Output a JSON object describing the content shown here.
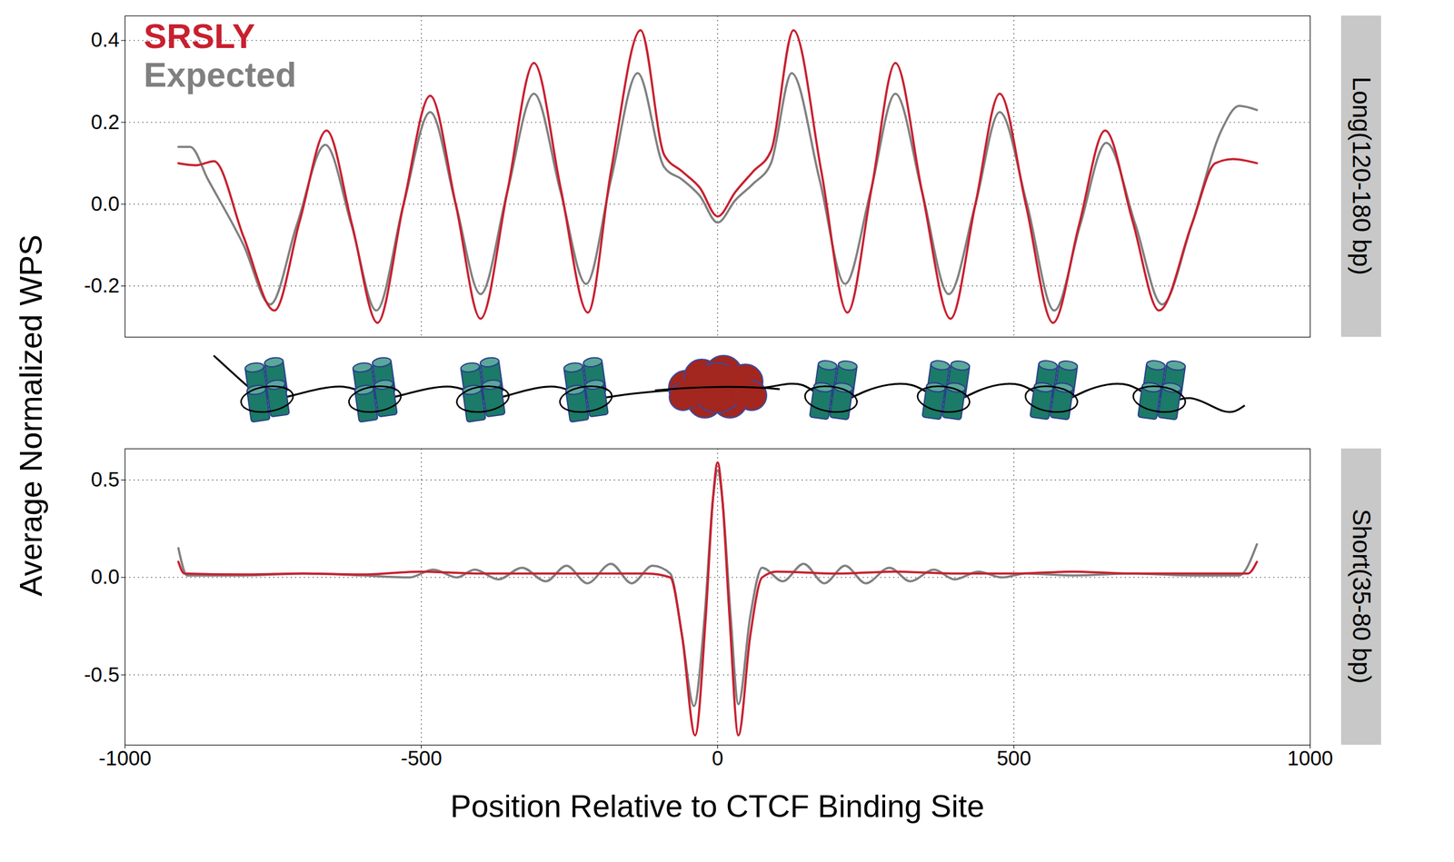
{
  "chart_data": [
    {
      "type": "line",
      "title": "Long(120-180 bp)",
      "y_label": "Average Normalized WPS",
      "xlim": [
        -1000,
        1000
      ],
      "xticks": [
        -1000,
        -500,
        0,
        500,
        1000
      ],
      "ylim": [
        -0.325,
        0.46
      ],
      "yticks": [
        -0.2,
        {
          "value": 0,
          "label": "0.0"
        },
        0.2,
        0.4
      ],
      "grid": true,
      "tick_labels": "y",
      "legend": "top-left",
      "series": [
        {
          "name": "SRSLY",
          "color": "#c8202f",
          "x": [
            -910,
            -880,
            -850,
            -800,
            -748,
            -705,
            -660,
            -617,
            -574,
            -530,
            -485,
            -442,
            -400,
            -355,
            -310,
            -265,
            -219,
            -180,
            -130,
            -90,
            -60,
            -30,
            0,
            30,
            60,
            90,
            128,
            175,
            219,
            260,
            300,
            345,
            393,
            435,
            476,
            520,
            566,
            610,
            654,
            700,
            745,
            800,
            840,
            870,
            910
          ],
          "values": [
            0.1,
            0.095,
            0.105,
            -0.08,
            -0.26,
            -0.04,
            0.18,
            -0.05,
            -0.29,
            0.0,
            0.265,
            0.0,
            -0.28,
            0.03,
            0.345,
            0.04,
            -0.265,
            0.08,
            0.425,
            0.12,
            0.08,
            0.04,
            -0.03,
            0.03,
            0.08,
            0.13,
            0.425,
            0.08,
            -0.265,
            0.04,
            0.345,
            0.03,
            -0.28,
            0.0,
            0.27,
            0.0,
            -0.29,
            -0.05,
            0.18,
            -0.04,
            -0.26,
            -0.05,
            0.1,
            0.11,
            0.1
          ]
        },
        {
          "name": "Expected",
          "color": "#808080",
          "x": [
            -910,
            -890,
            -860,
            -800,
            -755,
            -710,
            -662,
            -618,
            -576,
            -530,
            -485,
            -442,
            -400,
            -355,
            -310,
            -265,
            -222,
            -180,
            -135,
            -90,
            -60,
            -30,
            0,
            30,
            60,
            90,
            125,
            172,
            215,
            258,
            300,
            345,
            390,
            435,
            476,
            522,
            568,
            612,
            656,
            705,
            750,
            800,
            850,
            880,
            910
          ],
          "values": [
            0.14,
            0.14,
            0.06,
            -0.1,
            -0.245,
            -0.05,
            0.145,
            -0.05,
            -0.26,
            0.0,
            0.225,
            0.0,
            -0.22,
            0.03,
            0.27,
            0.03,
            -0.195,
            0.06,
            0.32,
            0.09,
            0.06,
            0.02,
            -0.045,
            0.01,
            0.05,
            0.1,
            0.32,
            0.06,
            -0.195,
            0.03,
            0.27,
            0.03,
            -0.22,
            0.0,
            0.225,
            0.0,
            -0.26,
            -0.05,
            0.15,
            -0.05,
            -0.245,
            -0.05,
            0.18,
            0.24,
            0.23
          ]
        }
      ]
    },
    {
      "type": "line",
      "title": "Short(35-80 bp)",
      "x_label": "Position Relative to CTCF Binding Site",
      "xlim": [
        -1000,
        1000
      ],
      "xticks": [
        -1000,
        -500,
        0,
        500,
        1000
      ],
      "ylim": [
        -0.86,
        0.66
      ],
      "yticks": [
        -0.5,
        {
          "value": 0,
          "label": "0.0"
        },
        0.5
      ],
      "grid": true,
      "series": [
        {
          "color": "#c8202f",
          "x": [
            -910,
            -900,
            -800,
            -700,
            -600,
            -500,
            -400,
            -300,
            -200,
            -120,
            -80,
            -60,
            -38,
            -20,
            -8,
            0,
            8,
            20,
            35,
            55,
            75,
            100,
            200,
            300,
            400,
            500,
            600,
            700,
            800,
            895,
            910
          ],
          "values": [
            0.08,
            0.02,
            0.015,
            0.02,
            0.015,
            0.03,
            0.02,
            0.02,
            0.02,
            0.02,
            0.0,
            -0.3,
            -0.81,
            -0.2,
            0.4,
            0.59,
            0.4,
            -0.2,
            -0.81,
            -0.3,
            0.0,
            0.03,
            0.02,
            0.03,
            0.02,
            0.02,
            0.03,
            0.02,
            0.02,
            0.02,
            0.08
          ]
        },
        {
          "color": "#808080",
          "x": [
            -910,
            -895,
            -800,
            -700,
            -600,
            -520,
            -480,
            -440,
            -410,
            -370,
            -330,
            -290,
            -255,
            -220,
            -180,
            -145,
            -110,
            -80,
            -60,
            -40,
            -22,
            -8,
            0,
            8,
            22,
            35,
            55,
            75,
            110,
            145,
            180,
            215,
            250,
            290,
            325,
            365,
            400,
            440,
            480,
            520,
            600,
            700,
            800,
            880,
            910
          ],
          "values": [
            0.15,
            0.01,
            0.01,
            0.02,
            0.01,
            0.0,
            0.04,
            0.0,
            0.04,
            -0.01,
            0.05,
            -0.02,
            0.06,
            -0.03,
            0.07,
            -0.03,
            0.06,
            0.02,
            -0.3,
            -0.66,
            -0.2,
            0.4,
            0.55,
            0.4,
            -0.2,
            -0.65,
            -0.2,
            0.05,
            -0.02,
            0.07,
            -0.03,
            0.06,
            -0.03,
            0.05,
            -0.02,
            0.04,
            -0.01,
            0.03,
            0.0,
            0.02,
            0.01,
            0.02,
            0.01,
            0.01,
            0.17
          ]
        }
      ]
    }
  ]
}
